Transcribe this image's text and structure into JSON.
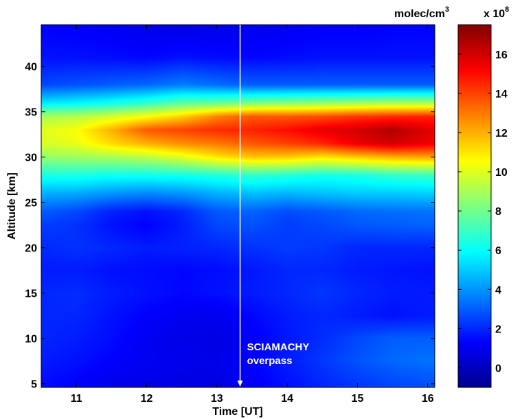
{
  "chart_data": {
    "type": "heatmap",
    "xlabel": "Time [UT]",
    "ylabel": "Altitude [km]",
    "xlim": [
      10.5,
      16.1
    ],
    "ylim": [
      4.6,
      44.6
    ],
    "x_ticks": [
      11,
      12,
      13,
      14,
      15,
      16
    ],
    "y_ticks": [
      5,
      10,
      15,
      20,
      25,
      30,
      35,
      40
    ],
    "colorbar": {
      "label": "molec/cm",
      "label_superscript": "3",
      "scale_label": "x 10",
      "scale_exponent": "8",
      "range": [
        -1,
        17.5
      ],
      "ticks": [
        0,
        2,
        4,
        6,
        8,
        10,
        12,
        14,
        16
      ],
      "colormap": "jet"
    },
    "x": [
      10.5,
      11,
      11.5,
      12,
      12.5,
      13,
      13.5,
      14,
      14.5,
      15,
      15.5,
      16.1
    ],
    "y": [
      5,
      7.5,
      10,
      12.5,
      15,
      17.5,
      20,
      22.5,
      24,
      26,
      28,
      30,
      31.5,
      33,
      34.5,
      36,
      38,
      41,
      44.6
    ],
    "z": [
      [
        1.5,
        1.3,
        1.0,
        0.9,
        0.8,
        0.8,
        1.2,
        1.6,
        2.0,
        2.3,
        2.6,
        2.8
      ],
      [
        1.8,
        1.6,
        1.3,
        1.1,
        1.0,
        0.9,
        1.3,
        1.8,
        2.3,
        2.8,
        3.2,
        3.4
      ],
      [
        2.0,
        1.8,
        1.5,
        1.1,
        0.9,
        0.8,
        1.2,
        1.7,
        2.1,
        2.6,
        3.0,
        3.0
      ],
      [
        2.0,
        2.0,
        1.6,
        1.3,
        1.1,
        1.0,
        1.4,
        1.8,
        2.0,
        1.8,
        1.6,
        1.8
      ],
      [
        2.0,
        2.1,
        1.8,
        1.6,
        1.4,
        1.6,
        1.8,
        2.0,
        2.3,
        2.0,
        1.8,
        1.8
      ],
      [
        1.8,
        1.8,
        1.6,
        1.5,
        1.4,
        1.5,
        1.7,
        2.0,
        2.0,
        1.8,
        1.7,
        1.6
      ],
      [
        2.0,
        2.2,
        2.0,
        1.8,
        1.9,
        2.0,
        2.2,
        2.4,
        2.3,
        2.0,
        2.0,
        2.0
      ],
      [
        2.4,
        2.2,
        1.6,
        1.3,
        1.8,
        2.6,
        2.8,
        2.4,
        2.6,
        2.9,
        3.0,
        3.1
      ],
      [
        3.0,
        2.6,
        1.9,
        1.6,
        2.0,
        2.9,
        3.1,
        2.7,
        2.9,
        3.2,
        3.3,
        3.4
      ],
      [
        4.5,
        4.4,
        4.0,
        3.8,
        4.0,
        4.5,
        4.8,
        4.6,
        4.8,
        5.0,
        5.0,
        5.1
      ],
      [
        6.4,
        6.4,
        6.2,
        6.2,
        6.3,
        6.5,
        6.8,
        6.6,
        6.3,
        6.4,
        6.8,
        7.0
      ],
      [
        8.6,
        8.8,
        9.0,
        9.3,
        10.0,
        11.0,
        11.6,
        11.5,
        11.0,
        11.5,
        12.0,
        12.2
      ],
      [
        9.8,
        10.2,
        11.2,
        12.0,
        12.6,
        13.0,
        13.6,
        14.0,
        14.5,
        15.5,
        16.0,
        15.4
      ],
      [
        10.0,
        10.5,
        12.0,
        13.6,
        14.0,
        14.4,
        14.6,
        15.0,
        15.6,
        16.0,
        16.6,
        15.6
      ],
      [
        9.0,
        9.2,
        9.8,
        10.5,
        11.4,
        12.8,
        13.6,
        13.6,
        13.8,
        14.2,
        14.4,
        14.6
      ],
      [
        5.5,
        5.8,
        6.2,
        6.8,
        7.6,
        7.8,
        8.2,
        8.4,
        8.6,
        8.8,
        9.0,
        9.0
      ],
      [
        2.6,
        2.8,
        3.0,
        3.2,
        3.6,
        3.3,
        3.0,
        3.0,
        3.0,
        3.0,
        3.0,
        3.0
      ],
      [
        1.6,
        1.6,
        1.5,
        1.4,
        1.6,
        1.5,
        1.4,
        1.5,
        1.6,
        1.6,
        1.6,
        1.6
      ],
      [
        1.3,
        1.2,
        1.1,
        0.9,
        0.8,
        0.9,
        1.0,
        1.1,
        1.2,
        1.2,
        1.3,
        1.3
      ]
    ],
    "marker_line": {
      "x": 13.33,
      "label_line1": "SCIAMACHY",
      "label_line2": "overpass"
    },
    "grid": false
  }
}
